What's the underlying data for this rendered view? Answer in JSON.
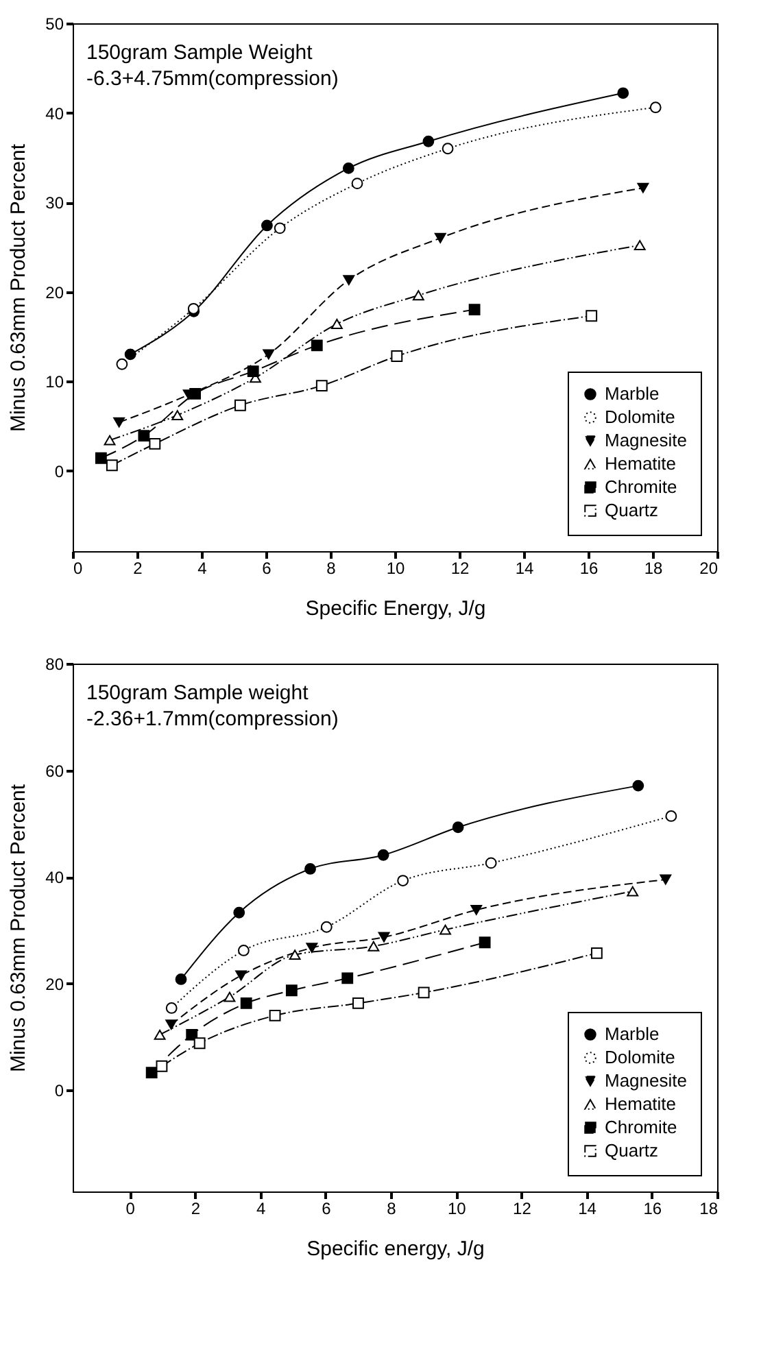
{
  "chart_data": [
    {
      "type": "line",
      "xlabel": "Specific Energy, J/g",
      "ylabel": "Minus 0.63mm Product Percent",
      "annotations": [
        "150gram Sample Weight",
        "-6.3+4.75mm(compression)"
      ],
      "xlim": [
        0,
        20
      ],
      "xticks": [
        0,
        2,
        4,
        6,
        8,
        10,
        12,
        14,
        16,
        18,
        20
      ],
      "ylim": [
        -9,
        50
      ],
      "yticks": [
        0,
        10,
        20,
        30,
        40,
        50
      ],
      "grid": false,
      "legend": "bottom right",
      "series": [
        {
          "name": "Marble",
          "color": "#000000",
          "marker": "circle",
          "line_style": "solid",
          "x": [
            1.79,
            3.76,
            6.03,
            8.56,
            11.04,
            17.08
          ],
          "values": [
            13.0,
            17.8,
            27.4,
            33.8,
            36.8,
            42.2
          ]
        },
        {
          "name": "Dolomite",
          "color": "#000000",
          "marker": "circle",
          "line_style": "dotted",
          "x": [
            1.53,
            3.75,
            6.43,
            8.83,
            11.64,
            18.09
          ],
          "values": [
            11.9,
            18.1,
            27.1,
            32.1,
            36.0,
            40.6
          ]
        },
        {
          "name": "Magnesite",
          "color": "#000000",
          "marker": "triangle-down",
          "line_style": "dashed",
          "x": [
            1.44,
            3.6,
            6.08,
            8.57,
            11.41,
            17.7
          ],
          "values": [
            5.4,
            8.5,
            13.0,
            21.3,
            26.0,
            31.6
          ]
        },
        {
          "name": "Hematite",
          "color": "#000000",
          "marker": "triangle-up",
          "line_style": "dashed",
          "x": [
            1.15,
            3.25,
            5.67,
            8.2,
            10.73,
            17.6
          ],
          "values": [
            3.4,
            6.2,
            10.4,
            16.4,
            19.6,
            25.2
          ]
        },
        {
          "name": "Chromite",
          "color": "#000000",
          "marker": "square",
          "line_style": "dashed",
          "x": [
            0.88,
            2.21,
            3.8,
            5.6,
            7.58,
            12.47
          ],
          "values": [
            1.4,
            3.9,
            8.6,
            11.1,
            14.0,
            18.0
          ]
        },
        {
          "name": "Quartz",
          "color": "#000000",
          "marker": "square",
          "line_style": "dashed",
          "x": [
            1.22,
            2.55,
            5.2,
            7.73,
            10.06,
            16.1
          ],
          "values": [
            0.6,
            3.0,
            7.3,
            9.5,
            12.8,
            17.3
          ]
        }
      ]
    },
    {
      "type": "line",
      "xlabel": "Specific energy, J/g",
      "ylabel": "Minus 0.63mm Product Percent",
      "annotations": [
        "150gram Sample weight",
        "-2.36+1.7mm(compression)"
      ],
      "xlim": [
        -1.75,
        18
      ],
      "xticks": [
        0,
        2,
        4,
        6,
        8,
        10,
        12,
        14,
        16,
        18
      ],
      "ylim": [
        -19,
        80
      ],
      "yticks": [
        0,
        20,
        40,
        60,
        80
      ],
      "grid": false,
      "legend": "bottom right",
      "series": [
        {
          "name": "Marble",
          "color": "#000000",
          "marker": "circle",
          "line_style": "solid",
          "x": [
            1.57,
            3.35,
            5.53,
            7.77,
            10.06,
            15.58
          ],
          "values": [
            20.8,
            33.3,
            41.5,
            44.1,
            49.3,
            57.1
          ]
        },
        {
          "name": "Dolomite",
          "color": "#000000",
          "marker": "circle",
          "line_style": "dotted",
          "x": [
            1.28,
            3.49,
            6.03,
            8.37,
            11.07,
            16.59
          ],
          "values": [
            15.4,
            26.2,
            30.6,
            39.3,
            42.6,
            51.4
          ]
        },
        {
          "name": "Magnesite",
          "color": "#000000",
          "marker": "triangle-down",
          "line_style": "dashed",
          "x": [
            1.27,
            3.41,
            5.58,
            7.79,
            10.62,
            16.42
          ],
          "values": [
            12.3,
            21.5,
            26.7,
            28.7,
            33.8,
            39.5
          ]
        },
        {
          "name": "Hematite",
          "color": "#000000",
          "marker": "triangle-up",
          "line_style": "dashed",
          "x": [
            0.92,
            3.06,
            5.06,
            7.47,
            9.67,
            15.41
          ],
          "values": [
            10.4,
            17.5,
            25.4,
            27.0,
            30.1,
            37.3
          ]
        },
        {
          "name": "Chromite",
          "color": "#000000",
          "marker": "square",
          "line_style": "dashed",
          "x": [
            0.67,
            1.9,
            3.57,
            4.96,
            6.67,
            10.88
          ],
          "values": [
            3.3,
            10.4,
            16.3,
            18.7,
            21.0,
            27.7
          ]
        },
        {
          "name": "Quartz",
          "color": "#000000",
          "marker": "square",
          "line_style": "dashed",
          "x": [
            0.98,
            2.14,
            4.45,
            7.0,
            9.01,
            14.31
          ],
          "values": [
            4.5,
            8.8,
            14.0,
            16.3,
            18.3,
            25.7
          ]
        }
      ]
    }
  ]
}
